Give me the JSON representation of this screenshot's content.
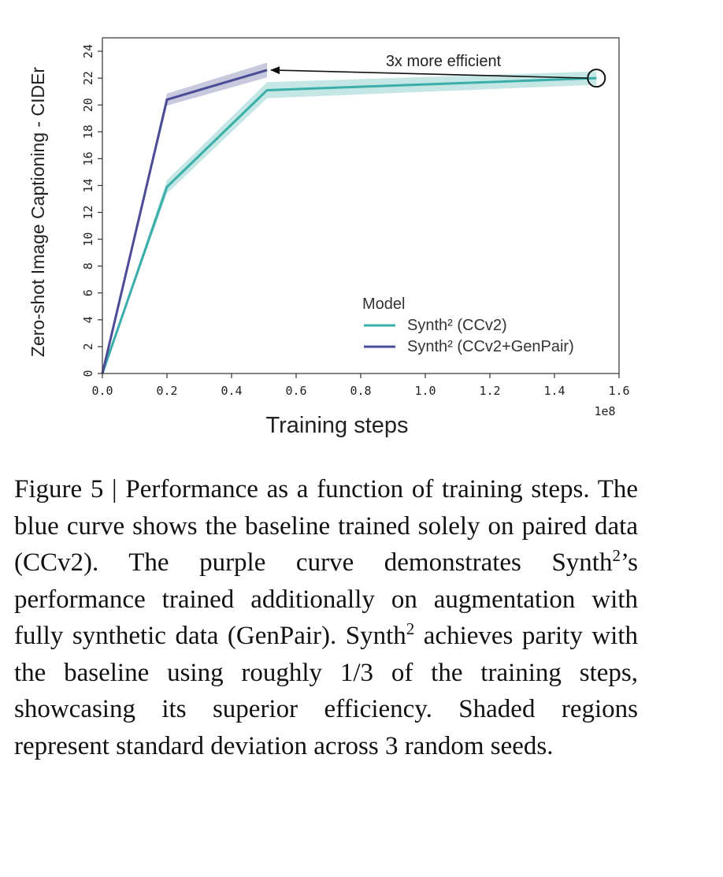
{
  "chart_data": {
    "type": "line",
    "xlabel": "Training steps",
    "ylabel": "Zero-shot Image Captioning - CIDEr",
    "x_scale_label": "1e8",
    "xlim": [
      0.0,
      1.6
    ],
    "ylim": [
      0,
      25
    ],
    "x_ticks": [
      "0.0",
      "0.2",
      "0.4",
      "0.6",
      "0.8",
      "1.0",
      "1.2",
      "1.4",
      "1.6"
    ],
    "y_ticks": [
      "0",
      "2",
      "4",
      "6",
      "8",
      "10",
      "12",
      "14",
      "16",
      "18",
      "20",
      "22",
      "24"
    ],
    "grid": false,
    "legend": {
      "title": "Model",
      "placement": "lower-right"
    },
    "series": [
      {
        "name": "Synth² (CCv2)",
        "color": "#3aaea8",
        "x": [
          0.0,
          0.2,
          0.51,
          1.53
        ],
        "y": [
          0.0,
          13.9,
          21.1,
          22.0
        ],
        "std": [
          0.0,
          0.5,
          0.6,
          0.5
        ]
      },
      {
        "name": "Synth² (CCv2+GenPair)",
        "color": "#4a4d96",
        "x": [
          0.0,
          0.2,
          0.51
        ],
        "y": [
          0.0,
          20.4,
          22.6
        ],
        "std": [
          0.0,
          0.45,
          0.55
        ]
      }
    ],
    "annotation": {
      "text": "3x more efficient",
      "from": [
        1.53,
        22.0
      ],
      "to": [
        0.51,
        22.6
      ]
    }
  },
  "caption": {
    "prefix": "Figure 5 | Performance as a function of training steps. The blue curve shows the baseline trained solely on paired data (CCv2). The purple curve demonstrates Synth",
    "sup1": "2",
    "middle": "’s performance trained additionally on augmentation with fully synthetic data (GenPair). Synth",
    "sup2": "2",
    "suffix": " achieves parity with the baseline using roughly 1/3 of the training steps, showcasing its superior efficiency. Shaded regions represent standard deviation across 3 random seeds."
  }
}
